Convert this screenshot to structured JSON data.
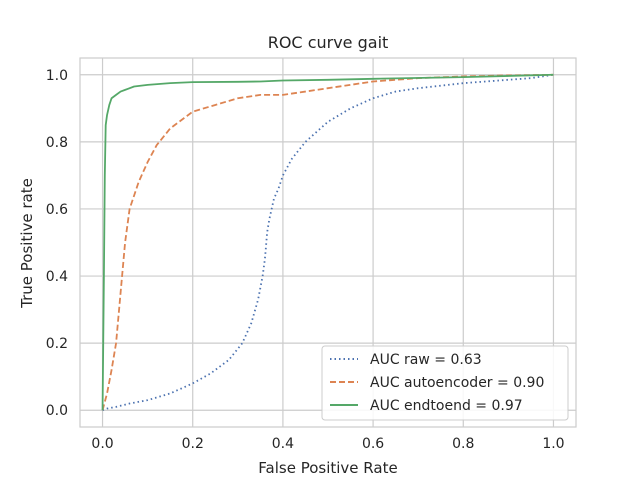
{
  "chart_data": {
    "type": "line",
    "title": "ROC curve gait",
    "xlabel": "False Positive Rate",
    "ylabel": "True Positive rate",
    "xlim": [
      -0.05,
      1.05
    ],
    "ylim": [
      -0.05,
      1.05
    ],
    "xticks": [
      "0.0",
      "0.2",
      "0.4",
      "0.6",
      "0.8",
      "1.0"
    ],
    "yticks": [
      "0.0",
      "0.2",
      "0.4",
      "0.6",
      "0.8",
      "1.0"
    ],
    "grid": true,
    "legend_position": "lower-right",
    "series": [
      {
        "name": "AUC raw = 0.63",
        "color": "#4c72b0",
        "style": "dotted",
        "x": [
          0.0,
          0.01,
          0.03,
          0.06,
          0.1,
          0.15,
          0.2,
          0.24,
          0.28,
          0.31,
          0.33,
          0.345,
          0.355,
          0.36,
          0.362,
          0.365,
          0.37,
          0.375,
          0.38,
          0.39,
          0.4,
          0.42,
          0.45,
          0.5,
          0.55,
          0.6,
          0.65,
          0.7,
          0.8,
          0.9,
          0.95,
          1.0
        ],
        "y": [
          0.0,
          0.005,
          0.01,
          0.02,
          0.03,
          0.05,
          0.08,
          0.11,
          0.15,
          0.2,
          0.26,
          0.33,
          0.4,
          0.45,
          0.48,
          0.53,
          0.57,
          0.6,
          0.63,
          0.66,
          0.7,
          0.75,
          0.8,
          0.86,
          0.9,
          0.93,
          0.95,
          0.96,
          0.975,
          0.985,
          0.99,
          1.0
        ]
      },
      {
        "name": "AUC autoencoder = 0.90",
        "color": "#dd8452",
        "style": "dashed",
        "x": [
          0.0,
          0.01,
          0.02,
          0.03,
          0.04,
          0.05,
          0.06,
          0.08,
          0.1,
          0.12,
          0.15,
          0.2,
          0.25,
          0.3,
          0.35,
          0.4,
          0.45,
          0.5,
          0.55,
          0.6,
          0.7,
          0.8,
          0.9,
          1.0
        ],
        "y": [
          0.0,
          0.05,
          0.12,
          0.2,
          0.35,
          0.5,
          0.6,
          0.68,
          0.74,
          0.79,
          0.84,
          0.89,
          0.91,
          0.93,
          0.94,
          0.94,
          0.95,
          0.96,
          0.97,
          0.98,
          0.99,
          0.995,
          0.998,
          1.0
        ]
      },
      {
        "name": "AUC endtoend = 0.97",
        "color": "#55a868",
        "style": "solid",
        "x": [
          0.0,
          0.003,
          0.005,
          0.007,
          0.01,
          0.015,
          0.02,
          0.03,
          0.04,
          0.05,
          0.07,
          0.1,
          0.15,
          0.2,
          0.3,
          0.35,
          0.4,
          0.5,
          0.6,
          0.8,
          1.0
        ],
        "y": [
          0.0,
          0.4,
          0.7,
          0.85,
          0.88,
          0.91,
          0.93,
          0.94,
          0.95,
          0.955,
          0.965,
          0.97,
          0.975,
          0.978,
          0.979,
          0.98,
          0.983,
          0.985,
          0.988,
          0.993,
          1.0
        ]
      }
    ]
  }
}
